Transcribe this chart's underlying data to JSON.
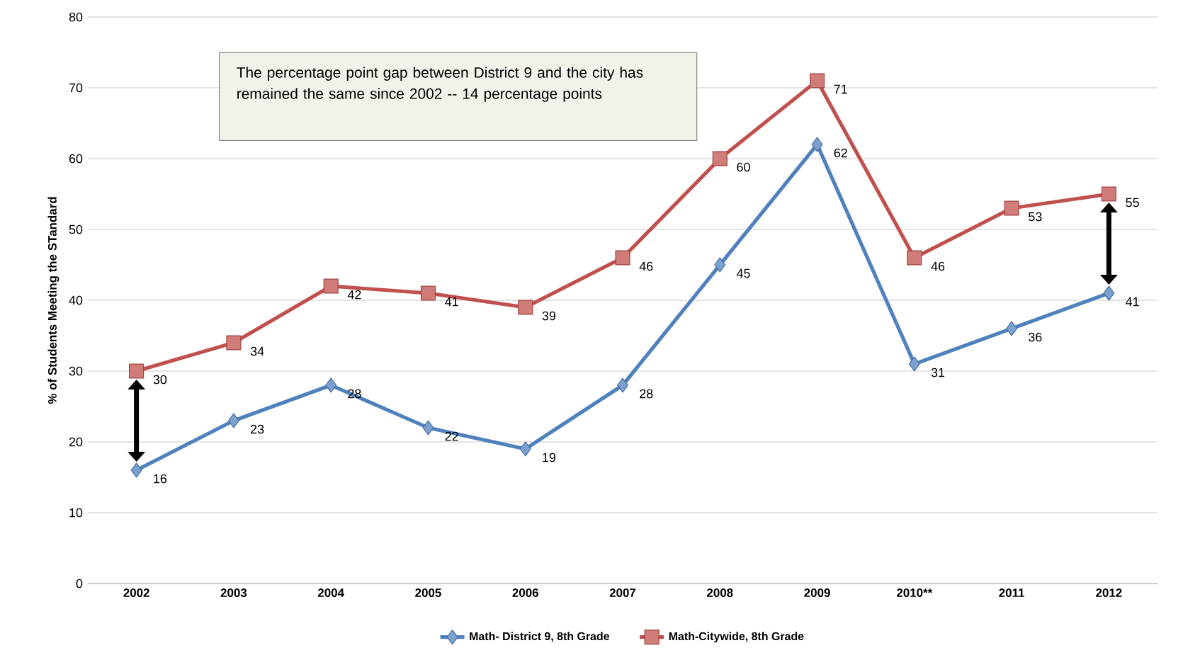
{
  "chart_data": {
    "type": "line",
    "ylabel": "% of Students Meeting the STandard",
    "categories": [
      "2002",
      "2003",
      "2004",
      "2005",
      "2006",
      "2007",
      "2008",
      "2009",
      "2010**",
      "2011",
      "2012"
    ],
    "series": [
      {
        "name": "Math- District 9, 8th Grade",
        "color": "#4f81bd",
        "marker": "diamond",
        "values": [
          16,
          23,
          28,
          22,
          19,
          28,
          45,
          62,
          31,
          36,
          41
        ]
      },
      {
        "name": "Math-Citywide, 8th Grade",
        "color": "#c0504d",
        "marker": "square",
        "values": [
          30,
          34,
          42,
          41,
          39,
          46,
          60,
          71,
          46,
          53,
          55
        ]
      }
    ],
    "ylim": [
      0,
      80
    ],
    "yticks": [
      0,
      10,
      20,
      30,
      40,
      50,
      60,
      70,
      80
    ],
    "grid": "y",
    "legend": "bottom",
    "data_labels": true,
    "line_style": "solid",
    "annotations": [
      "The percentage point gap between District 9 and the city has remained the same since 2002 -- 14 percentage points"
    ]
  }
}
